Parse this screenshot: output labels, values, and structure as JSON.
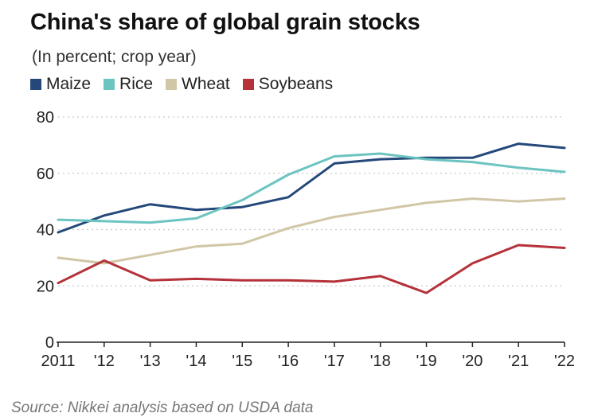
{
  "title": "China's share of global grain stocks",
  "subtitle": "(In percent; crop year)",
  "source": "Source: Nikkei analysis based on USDA data",
  "chart_data": {
    "type": "line",
    "x": [
      "2011",
      "'12",
      "'13",
      "'14",
      "'15",
      "'16",
      "'17",
      "'18",
      "'19",
      "'20",
      "'21",
      "'22"
    ],
    "ylim": [
      0,
      80
    ],
    "yticks": [
      0,
      20,
      40,
      60,
      80
    ],
    "grid": true,
    "legend_position": "top-left",
    "series": [
      {
        "name": "Maize",
        "color": "#25487a",
        "values": [
          39,
          45,
          49,
          47,
          48,
          51.5,
          63.5,
          65,
          65.5,
          65.5,
          70.5,
          69
        ]
      },
      {
        "name": "Rice",
        "color": "#6cc4c1",
        "values": [
          43.5,
          43,
          42.5,
          44,
          50.5,
          59.5,
          66,
          67,
          65,
          64,
          62,
          60.5
        ]
      },
      {
        "name": "Wheat",
        "color": "#d1c6a6",
        "values": [
          30,
          28,
          31,
          34,
          35,
          40.5,
          44.5,
          47,
          49.5,
          51,
          50,
          51
        ]
      },
      {
        "name": "Soybeans",
        "color": "#b5323a",
        "values": [
          21,
          29,
          22,
          22.5,
          22,
          22,
          21.5,
          23.5,
          17.5,
          28,
          34.5,
          33.5
        ]
      }
    ]
  }
}
